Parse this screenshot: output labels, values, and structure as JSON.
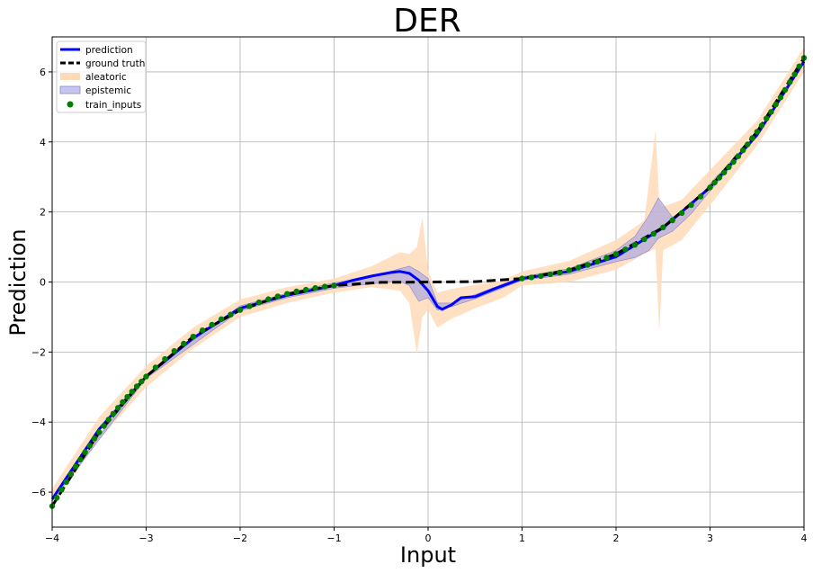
{
  "chart_data": {
    "type": "line",
    "title": "DER",
    "xlabel": "Input",
    "ylabel": "Prediction",
    "xlim": [
      -4,
      4
    ],
    "ylim": [
      -7,
      7
    ],
    "grid": true,
    "legend_position": "top-left",
    "xticks": [
      -4,
      -3,
      -2,
      -1,
      0,
      1,
      2,
      3,
      4
    ],
    "yticks": [
      -6,
      -4,
      -2,
      0,
      2,
      4,
      6
    ],
    "xtick_labels": [
      "−4",
      "−3",
      "−2",
      "−1",
      "0",
      "1",
      "2",
      "3",
      "4"
    ],
    "ytick_labels": [
      "−6",
      "−4",
      "−2",
      "0",
      "2",
      "4",
      "6"
    ],
    "colors": {
      "prediction": "#0000ff",
      "ground_truth": "#000000",
      "aleatoric": "#ffdab9",
      "epistemic": "#a09ee6",
      "train_inputs": "#008000"
    },
    "series": [
      {
        "name": "prediction",
        "style": "solid",
        "x": [
          -4.0,
          -3.5,
          -3.0,
          -2.5,
          -2.0,
          -1.5,
          -1.0,
          -0.8,
          -0.6,
          -0.4,
          -0.3,
          -0.2,
          -0.1,
          0.0,
          0.1,
          0.15,
          0.25,
          0.35,
          0.5,
          0.7,
          1.0,
          1.5,
          2.0,
          2.5,
          3.0,
          3.5,
          4.0
        ],
        "y": [
          -6.2,
          -4.2,
          -2.7,
          -1.6,
          -0.75,
          -0.38,
          -0.1,
          0.05,
          0.17,
          0.27,
          0.3,
          0.25,
          0.05,
          -0.25,
          -0.7,
          -0.78,
          -0.65,
          -0.45,
          -0.42,
          -0.2,
          0.1,
          0.3,
          0.72,
          1.55,
          2.7,
          4.2,
          6.3
        ]
      },
      {
        "name": "ground truth",
        "style": "dashed",
        "x": [
          -4.0,
          -3.5,
          -3.0,
          -2.5,
          -2.0,
          -1.5,
          -1.0,
          -0.5,
          0.0,
          0.5,
          1.0,
          1.5,
          2.0,
          2.5,
          3.0,
          3.5,
          4.0
        ],
        "y": [
          -6.4,
          -4.29,
          -2.7,
          -1.56,
          -0.8,
          -0.34,
          -0.1,
          -0.01,
          0.0,
          0.01,
          0.1,
          0.34,
          0.8,
          1.56,
          2.7,
          4.29,
          6.4
        ]
      },
      {
        "name": "aleatoric",
        "style": "band",
        "x": [
          -4.0,
          -3.5,
          -3.0,
          -2.5,
          -2.0,
          -1.5,
          -1.0,
          -0.6,
          -0.3,
          -0.2,
          -0.12,
          -0.06,
          0.0,
          0.1,
          0.25,
          0.5,
          0.8,
          1.0,
          1.5,
          2.0,
          2.3,
          2.42,
          2.46,
          2.5,
          2.7,
          3.0,
          3.5,
          4.0
        ],
        "lower": [
          -6.4,
          -4.5,
          -3.0,
          -1.9,
          -1.0,
          -0.6,
          -0.3,
          -0.15,
          -0.25,
          -0.6,
          -2.05,
          -1.0,
          -0.8,
          -1.3,
          -1.05,
          -0.75,
          -0.45,
          -0.1,
          0.0,
          0.35,
          0.8,
          0.95,
          -1.45,
          0.9,
          1.2,
          2.2,
          3.9,
          6.0
        ],
        "upper": [
          -5.9,
          -3.85,
          -2.4,
          -1.3,
          -0.5,
          -0.15,
          0.1,
          0.45,
          0.85,
          0.8,
          1.0,
          1.85,
          0.3,
          -0.3,
          -0.2,
          -0.08,
          0.05,
          0.3,
          0.6,
          1.2,
          1.75,
          4.35,
          2.3,
          2.15,
          2.35,
          3.2,
          4.6,
          6.7
        ]
      },
      {
        "name": "epistemic",
        "style": "band",
        "x": [
          -4.0,
          -3.0,
          -2.0,
          -1.5,
          -1.0,
          -0.6,
          -0.3,
          -0.2,
          -0.1,
          0.0,
          0.1,
          0.25,
          0.5,
          1.0,
          1.5,
          2.0,
          2.2,
          2.35,
          2.45,
          2.6,
          2.8,
          3.0,
          3.5,
          4.0
        ],
        "lower": [
          -6.25,
          -2.75,
          -0.82,
          -0.45,
          -0.18,
          -0.05,
          0.02,
          -0.1,
          -0.55,
          -0.45,
          -0.8,
          -0.7,
          -0.48,
          0.05,
          0.22,
          0.58,
          0.7,
          0.9,
          1.25,
          1.45,
          1.95,
          2.6,
          4.15,
          6.25
        ],
        "upper": [
          -6.15,
          -2.65,
          -0.68,
          -0.32,
          -0.02,
          0.15,
          0.38,
          0.45,
          0.3,
          0.1,
          -0.6,
          -0.6,
          -0.36,
          0.15,
          0.38,
          0.9,
          1.3,
          1.9,
          2.4,
          1.85,
          2.15,
          2.8,
          4.25,
          6.35
        ]
      },
      {
        "name": "train_inputs",
        "style": "scatter",
        "x": [
          -4.0,
          -3.95,
          -3.9,
          -3.85,
          -3.8,
          -3.75,
          -3.7,
          -3.65,
          -3.6,
          -3.55,
          -3.5,
          -3.45,
          -3.4,
          -3.35,
          -3.3,
          -3.25,
          -3.2,
          -3.15,
          -3.1,
          -3.05,
          -3.0,
          -2.9,
          -2.8,
          -2.7,
          -2.6,
          -2.5,
          -2.4,
          -2.3,
          -2.2,
          -2.1,
          -2.0,
          -1.9,
          -1.8,
          -1.7,
          -1.6,
          -1.5,
          -1.4,
          -1.3,
          -1.2,
          -1.1,
          -1.0,
          1.0,
          1.1,
          1.2,
          1.3,
          1.4,
          1.5,
          1.6,
          1.7,
          1.8,
          1.9,
          2.0,
          2.1,
          2.2,
          2.3,
          2.4,
          2.5,
          2.6,
          2.7,
          2.8,
          2.9,
          3.0,
          3.05,
          3.1,
          3.15,
          3.2,
          3.25,
          3.3,
          3.35,
          3.4,
          3.45,
          3.5,
          3.55,
          3.6,
          3.65,
          3.7,
          3.75,
          3.8,
          3.85,
          3.9,
          3.95,
          4.0
        ],
        "y": [
          -6.4,
          -6.16,
          -5.93,
          -5.71,
          -5.49,
          -5.27,
          -5.07,
          -4.86,
          -4.67,
          -4.47,
          -4.29,
          -4.11,
          -3.93,
          -3.76,
          -3.59,
          -3.43,
          -3.28,
          -3.13,
          -2.98,
          -2.84,
          -2.7,
          -2.44,
          -2.2,
          -1.97,
          -1.76,
          -1.56,
          -1.38,
          -1.22,
          -1.06,
          -0.93,
          -0.8,
          -0.69,
          -0.58,
          -0.49,
          -0.41,
          -0.34,
          -0.27,
          -0.22,
          -0.17,
          -0.13,
          -0.1,
          0.1,
          0.13,
          0.17,
          0.22,
          0.27,
          0.34,
          0.41,
          0.49,
          0.58,
          0.69,
          0.8,
          0.93,
          1.06,
          1.22,
          1.38,
          1.56,
          1.76,
          1.97,
          2.2,
          2.44,
          2.7,
          2.84,
          2.98,
          3.13,
          3.28,
          3.43,
          3.59,
          3.76,
          3.93,
          4.11,
          4.29,
          4.47,
          4.67,
          4.86,
          5.07,
          5.27,
          5.49,
          5.71,
          5.93,
          6.16,
          6.4
        ]
      }
    ],
    "legend": [
      "prediction",
      "ground truth",
      "aleatoric",
      "epistemic",
      "train_inputs"
    ]
  }
}
